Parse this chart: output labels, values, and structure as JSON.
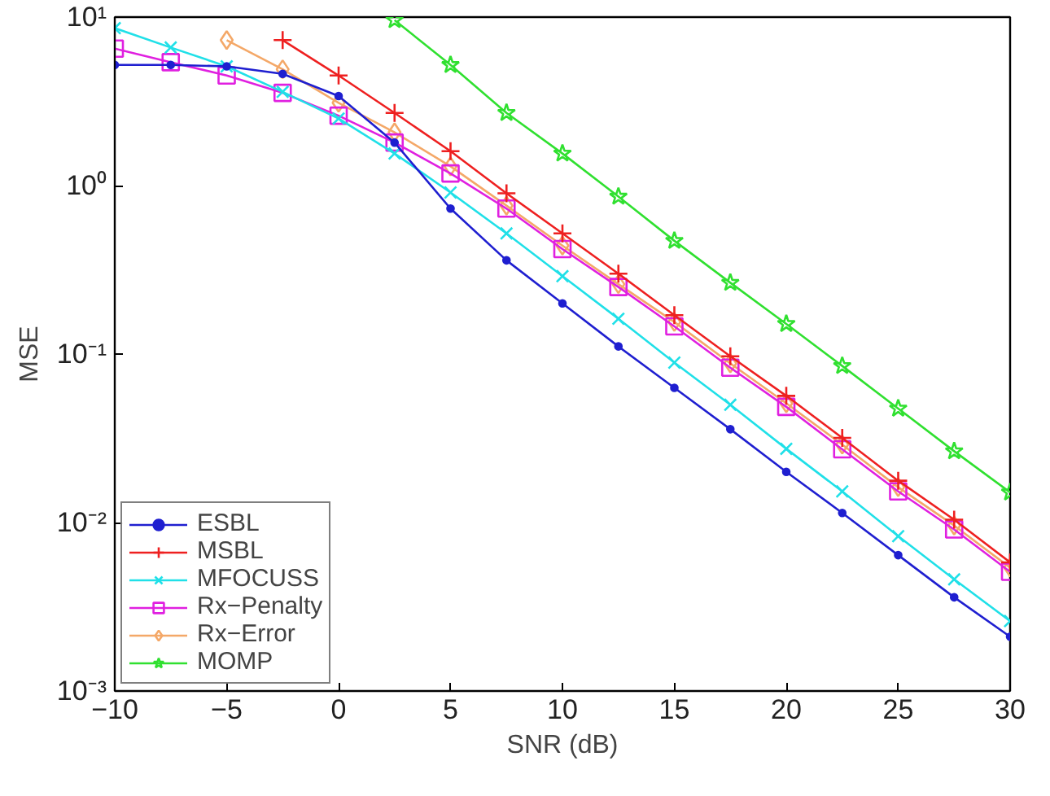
{
  "chart_data": {
    "type": "line",
    "xlabel": "SNR (dB)",
    "ylabel": "MSE",
    "log": "y",
    "x": [
      -10,
      -7.5,
      -5,
      -2.5,
      0,
      2.5,
      5,
      7.5,
      10,
      12.5,
      15,
      17.5,
      20,
      22.5,
      25,
      27.5,
      30
    ],
    "xlim": [
      -10,
      30
    ],
    "xticks": [
      -10,
      -5,
      0,
      5,
      10,
      15,
      20,
      25,
      30
    ],
    "ylim": [
      0.001,
      10
    ],
    "yticks": [
      {
        "value": 0.001,
        "label": "10⁻³"
      },
      {
        "value": 0.01,
        "label": "10⁻²"
      },
      {
        "value": 0.1,
        "label": "10⁻¹"
      },
      {
        "value": 1,
        "label": "10⁰"
      },
      {
        "value": 10,
        "label": "10¹"
      }
    ],
    "grid": false,
    "legend": "bottom left",
    "line_style": "solid",
    "series": [
      {
        "name": "ESBL",
        "color": "#1f1fd0",
        "marker": "circle",
        "values": [
          5.2,
          5.2,
          5.1,
          4.6,
          3.4,
          1.8,
          0.73,
          0.36,
          0.2,
          0.111,
          0.063,
          0.0358,
          0.02,
          0.0114,
          0.0064,
          0.0036,
          0.0021
        ]
      },
      {
        "name": "MSBL",
        "color": "#ee2020",
        "marker": "cross",
        "values": [
          null,
          null,
          null,
          7.3,
          4.5,
          2.7,
          1.6,
          0.9,
          0.52,
          0.3,
          0.17,
          0.097,
          0.0565,
          0.0318,
          0.0177,
          0.0104,
          0.0058
        ]
      },
      {
        "name": "MFOCUSS",
        "color": "#20e0e8",
        "marker": "x",
        "values": [
          8.6,
          6.6,
          5.1,
          3.6,
          2.5,
          1.55,
          0.91,
          0.52,
          0.29,
          0.162,
          0.089,
          0.05,
          0.0274,
          0.0153,
          0.0083,
          0.0046,
          0.0026
        ]
      },
      {
        "name": "Rx−Penalty",
        "color": "#e020e0",
        "marker": "square",
        "values": [
          6.5,
          5.4,
          4.5,
          3.55,
          2.6,
          1.8,
          1.18,
          0.73,
          0.42,
          0.25,
          0.146,
          0.083,
          0.0486,
          0.0272,
          0.0153,
          0.0091,
          0.0051
        ]
      },
      {
        "name": "Rx−Error",
        "color": "#f4a868",
        "marker": "diamond",
        "values": [
          null,
          null,
          7.3,
          4.9,
          3.1,
          2.07,
          1.3,
          0.76,
          0.44,
          0.26,
          0.155,
          0.088,
          0.051,
          0.029,
          0.0162,
          0.0096,
          0.0054
        ]
      },
      {
        "name": "MOMP",
        "color": "#30e030",
        "marker": "star",
        "values": [
          null,
          null,
          null,
          null,
          null,
          9.6,
          5.2,
          2.7,
          1.55,
          0.86,
          0.47,
          0.265,
          0.151,
          0.085,
          0.0475,
          0.0265,
          0.0151
        ]
      }
    ]
  }
}
